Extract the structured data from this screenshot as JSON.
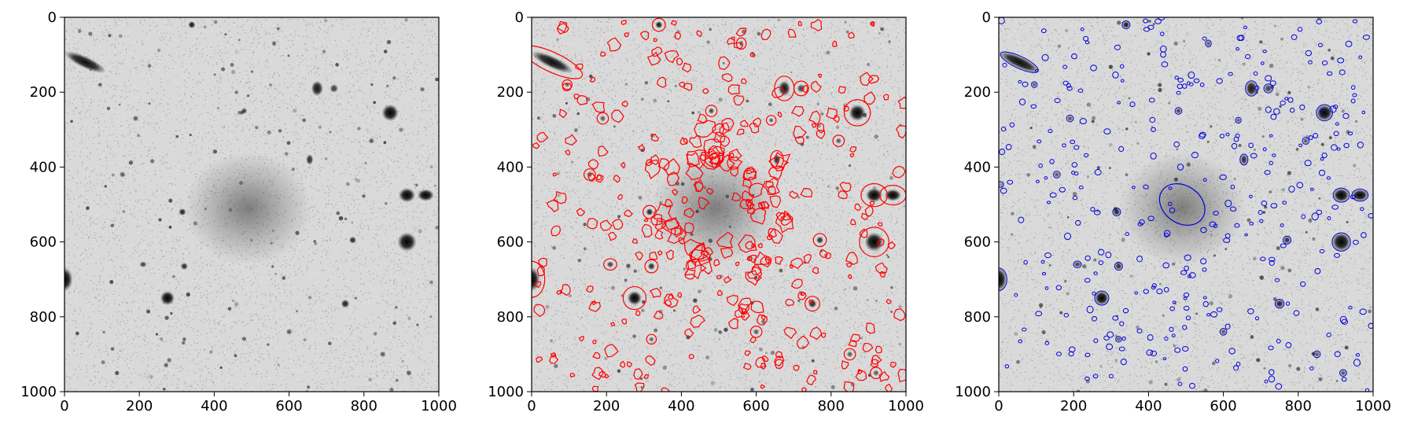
{
  "chart_data": [
    {
      "type": "heatmap",
      "panel": "raw image",
      "colormap": "gray_r",
      "xlim": [
        0,
        1000
      ],
      "ylim": [
        1000,
        0
      ],
      "xticks": [
        0,
        200,
        400,
        600,
        800,
        1000
      ],
      "yticks": [
        0,
        200,
        400,
        600,
        800,
        1000
      ],
      "xticklabels": [
        "0",
        "200",
        "400",
        "600",
        "800",
        "1000"
      ],
      "yticklabels": [
        "0",
        "200",
        "400",
        "600",
        "800",
        "1000"
      ],
      "title": "",
      "xlabel": "",
      "ylabel": "",
      "sources": [
        [
          55,
          120,
          38,
          10,
          25,
          0.95
        ],
        [
          340,
          20,
          6,
          6,
          0,
          0.9
        ],
        [
          675,
          190,
          10,
          13,
          0,
          0.9
        ],
        [
          720,
          190,
          7,
          7,
          0,
          0.7
        ],
        [
          870,
          255,
          14,
          14,
          0,
          1.0
        ],
        [
          915,
          475,
          14,
          12,
          0,
          1.0
        ],
        [
          965,
          475,
          14,
          10,
          0,
          1.0
        ],
        [
          915,
          600,
          16,
          16,
          0,
          1.0
        ],
        [
          0,
          700,
          14,
          20,
          0,
          1.0
        ],
        [
          275,
          750,
          12,
          12,
          0,
          1.0
        ],
        [
          315,
          520,
          6,
          6,
          0,
          0.85
        ],
        [
          320,
          665,
          6,
          6,
          0,
          0.8
        ],
        [
          655,
          380,
          6,
          9,
          0,
          0.8
        ],
        [
          770,
          595,
          6,
          6,
          0,
          0.8
        ],
        [
          750,
          765,
          7,
          7,
          0,
          0.85
        ],
        [
          210,
          660,
          6,
          5,
          0,
          0.7
        ],
        [
          640,
          275,
          4,
          4,
          0,
          0.6
        ],
        [
          820,
          330,
          5,
          5,
          0,
          0.6
        ],
        [
          155,
          420,
          5,
          5,
          0,
          0.6
        ],
        [
          480,
          250,
          5,
          5,
          0,
          0.7
        ],
        [
          560,
          70,
          4,
          5,
          0,
          0.6
        ],
        [
          600,
          840,
          5,
          5,
          0,
          0.6
        ],
        [
          920,
          950,
          5,
          5,
          0,
          0.6
        ],
        [
          850,
          900,
          5,
          5,
          0,
          0.6
        ],
        [
          95,
          180,
          4,
          4,
          0,
          0.6
        ],
        [
          190,
          270,
          5,
          5,
          0,
          0.6
        ],
        [
          320,
          860,
          4,
          4,
          0,
          0.6
        ]
      ],
      "diffuse_galaxy": {
        "x": 490,
        "y": 510,
        "rx": 170,
        "ry": 150,
        "intensity": 0.35
      }
    },
    {
      "type": "heatmap",
      "panel": "image with red contours",
      "colormap": "gray_r",
      "overlay": "contours",
      "overlay_color": "#ff0000",
      "xlim": [
        0,
        1000
      ],
      "ylim": [
        1000,
        0
      ],
      "xticks": [
        0,
        200,
        400,
        600,
        800,
        1000
      ],
      "yticks": [
        0,
        200,
        400,
        600,
        800,
        1000
      ],
      "xticklabels": [
        "0",
        "200",
        "400",
        "600",
        "800",
        "1000"
      ],
      "yticklabels": [
        "0",
        "200",
        "400",
        "600",
        "800",
        "1000"
      ],
      "title": "",
      "xlabel": "",
      "ylabel": "",
      "sources": [
        [
          55,
          120,
          38,
          10,
          25,
          0.95
        ],
        [
          340,
          20,
          6,
          6,
          0,
          0.9
        ],
        [
          675,
          190,
          10,
          13,
          0,
          0.9
        ],
        [
          720,
          190,
          7,
          7,
          0,
          0.7
        ],
        [
          870,
          255,
          14,
          14,
          0,
          1.0
        ],
        [
          915,
          475,
          14,
          12,
          0,
          1.0
        ],
        [
          965,
          475,
          14,
          10,
          0,
          1.0
        ],
        [
          915,
          600,
          16,
          16,
          0,
          1.0
        ],
        [
          0,
          700,
          14,
          20,
          0,
          1.0
        ],
        [
          275,
          750,
          12,
          12,
          0,
          1.0
        ],
        [
          315,
          520,
          6,
          6,
          0,
          0.85
        ],
        [
          320,
          665,
          6,
          6,
          0,
          0.8
        ],
        [
          655,
          380,
          6,
          9,
          0,
          0.8
        ],
        [
          770,
          595,
          6,
          6,
          0,
          0.8
        ],
        [
          750,
          765,
          7,
          7,
          0,
          0.85
        ],
        [
          210,
          660,
          6,
          5,
          0,
          0.7
        ],
        [
          640,
          275,
          4,
          4,
          0,
          0.6
        ],
        [
          820,
          330,
          5,
          5,
          0,
          0.6
        ],
        [
          155,
          420,
          5,
          5,
          0,
          0.6
        ],
        [
          480,
          250,
          5,
          5,
          0,
          0.7
        ],
        [
          560,
          70,
          4,
          5,
          0,
          0.6
        ],
        [
          600,
          840,
          5,
          5,
          0,
          0.6
        ],
        [
          920,
          950,
          5,
          5,
          0,
          0.6
        ],
        [
          850,
          900,
          5,
          5,
          0,
          0.6
        ],
        [
          95,
          180,
          4,
          4,
          0,
          0.6
        ],
        [
          190,
          270,
          5,
          5,
          0,
          0.6
        ],
        [
          320,
          860,
          4,
          4,
          0,
          0.6
        ]
      ],
      "diffuse_galaxy": {
        "x": 490,
        "y": 510,
        "rx": 170,
        "ry": 150,
        "intensity": 0.35
      }
    },
    {
      "type": "heatmap",
      "panel": "image with blue ellipses",
      "colormap": "gray_r",
      "overlay": "ellipses",
      "overlay_color": "#0000dd",
      "xlim": [
        0,
        1000
      ],
      "ylim": [
        1000,
        0
      ],
      "xticks": [
        0,
        200,
        400,
        600,
        800,
        1000
      ],
      "yticks": [
        0,
        200,
        400,
        600,
        800,
        1000
      ],
      "xticklabels": [
        "0",
        "200",
        "400",
        "600",
        "800",
        "1000"
      ],
      "yticklabels": [
        "0",
        "200",
        "400",
        "600",
        "800",
        "1000"
      ],
      "title": "",
      "xlabel": "",
      "ylabel": "",
      "sources": [
        [
          55,
          120,
          38,
          10,
          25,
          0.95
        ],
        [
          340,
          20,
          6,
          6,
          0,
          0.9
        ],
        [
          675,
          190,
          10,
          13,
          0,
          0.9
        ],
        [
          720,
          190,
          7,
          7,
          0,
          0.7
        ],
        [
          870,
          255,
          14,
          14,
          0,
          1.0
        ],
        [
          915,
          475,
          14,
          12,
          0,
          1.0
        ],
        [
          965,
          475,
          14,
          10,
          0,
          1.0
        ],
        [
          915,
          600,
          16,
          16,
          0,
          1.0
        ],
        [
          0,
          700,
          14,
          20,
          0,
          1.0
        ],
        [
          275,
          750,
          12,
          12,
          0,
          1.0
        ],
        [
          315,
          520,
          6,
          6,
          0,
          0.85
        ],
        [
          320,
          665,
          6,
          6,
          0,
          0.8
        ],
        [
          655,
          380,
          6,
          9,
          0,
          0.8
        ],
        [
          770,
          595,
          6,
          6,
          0,
          0.8
        ],
        [
          750,
          765,
          7,
          7,
          0,
          0.85
        ],
        [
          210,
          660,
          6,
          5,
          0,
          0.7
        ],
        [
          640,
          275,
          4,
          4,
          0,
          0.6
        ],
        [
          820,
          330,
          5,
          5,
          0,
          0.6
        ],
        [
          155,
          420,
          5,
          5,
          0,
          0.6
        ],
        [
          480,
          250,
          5,
          5,
          0,
          0.7
        ],
        [
          560,
          70,
          4,
          5,
          0,
          0.6
        ],
        [
          600,
          840,
          5,
          5,
          0,
          0.6
        ],
        [
          920,
          950,
          5,
          5,
          0,
          0.6
        ],
        [
          850,
          900,
          5,
          5,
          0,
          0.6
        ],
        [
          95,
          180,
          4,
          4,
          0,
          0.6
        ],
        [
          190,
          270,
          5,
          5,
          0,
          0.6
        ],
        [
          320,
          860,
          4,
          4,
          0,
          0.6
        ]
      ],
      "diffuse_galaxy": {
        "x": 490,
        "y": 510,
        "rx": 170,
        "ry": 150,
        "intensity": 0.35
      },
      "main_ellipse": {
        "x": 490,
        "y": 500,
        "rx": 65,
        "ry": 50,
        "angle": 35
      }
    }
  ]
}
